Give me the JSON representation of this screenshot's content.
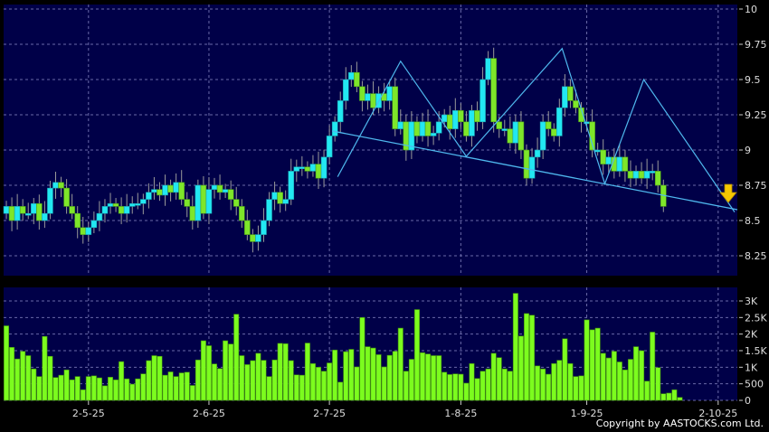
{
  "chart_data": [
    {
      "type": "candlestick",
      "y_axis": {
        "ticks": [
          "10",
          "9.75",
          "9.5",
          "9.25",
          "9",
          "8.75",
          "8.5",
          "8.25"
        ],
        "ylim": [
          8.18,
          10.03
        ],
        "position": "right"
      },
      "x_axis": {
        "ticks": [
          {
            "label": "2-5-25",
            "index": 15
          },
          {
            "label": "2-6-25",
            "index": 37
          },
          {
            "label": "2-7-25",
            "index": 59
          },
          {
            "label": "1-8-25",
            "index": 83
          },
          {
            "label": "1-9-25",
            "index": 106
          },
          {
            "label": "2-10-25",
            "index": 130
          }
        ]
      },
      "grid": true,
      "colors": {
        "background": "#000048",
        "up": "#22e8f2",
        "down": "#7ee62a",
        "pattern": "#4fb8ee",
        "grid": "#6a6aa8",
        "arrow": "#f5c800"
      },
      "close": [
        8.6,
        8.5,
        8.6,
        8.55,
        8.55,
        8.62,
        8.5,
        8.55,
        8.73,
        8.77,
        8.73,
        8.6,
        8.55,
        8.45,
        8.4,
        8.45,
        8.5,
        8.55,
        8.6,
        8.62,
        8.6,
        8.55,
        8.6,
        8.62,
        8.62,
        8.65,
        8.7,
        8.72,
        8.68,
        8.75,
        8.7,
        8.77,
        8.65,
        8.6,
        8.5,
        8.75,
        8.55,
        8.72,
        8.75,
        8.7,
        8.72,
        8.65,
        8.6,
        8.5,
        8.4,
        8.35,
        8.4,
        8.5,
        8.65,
        8.7,
        8.62,
        8.65,
        8.85,
        8.88,
        8.88,
        8.85,
        8.9,
        8.8,
        8.95,
        9.1,
        9.2,
        9.35,
        9.5,
        9.55,
        9.45,
        9.35,
        9.4,
        9.3,
        9.4,
        9.35,
        9.45,
        9.15,
        9.2,
        9.0,
        9.2,
        9.1,
        9.2,
        9.1,
        9.12,
        9.2,
        9.25,
        9.15,
        9.28,
        9.2,
        9.1,
        9.28,
        9.2,
        9.5,
        9.65,
        9.2,
        9.15,
        9.15,
        9.05,
        9.2,
        9.0,
        8.8,
        8.95,
        9.0,
        9.2,
        9.15,
        9.1,
        9.3,
        9.45,
        9.35,
        9.3,
        9.2,
        9.2,
        9.0,
        9.0,
        8.9,
        8.95,
        8.85,
        8.95,
        8.85,
        8.8,
        8.85,
        8.8,
        8.85,
        8.85,
        8.75,
        8.6
      ],
      "pattern_lines": {
        "trendline": [
          [
            59.5,
            9.135
          ],
          [
            133.5,
            8.577
          ]
        ],
        "zigzag": [
          [
            60.5,
            8.81
          ],
          [
            72,
            9.63
          ],
          [
            84,
            8.955
          ],
          [
            101.5,
            9.72
          ],
          [
            109.3,
            8.76
          ],
          [
            116.4,
            9.5
          ],
          [
            133,
            8.56
          ]
        ]
      },
      "signal": "down-arrow"
    },
    {
      "type": "bar",
      "y_axis": {
        "ticks": [
          "3K",
          "2.5K",
          "2K",
          "1.5K",
          "1K",
          "500",
          "0"
        ],
        "ylim": [
          0,
          3400
        ],
        "position": "right"
      },
      "values": [
        2250,
        1600,
        1250,
        1480,
        1350,
        950,
        720,
        1930,
        1330,
        690,
        760,
        920,
        620,
        720,
        320,
        720,
        740,
        680,
        440,
        700,
        620,
        1170,
        650,
        490,
        650,
        800,
        1200,
        1350,
        1330,
        760,
        860,
        720,
        830,
        850,
        450,
        1220,
        1800,
        1650,
        1100,
        960,
        1800,
        1700,
        2600,
        1350,
        1080,
        1200,
        1420,
        1210,
        720,
        1220,
        1720,
        1710,
        1200,
        770,
        760,
        1730,
        1110,
        1000,
        880,
        1130,
        1520,
        550,
        1470,
        1540,
        1010,
        2500,
        1620,
        1580,
        1380,
        1010,
        1360,
        1480,
        2180,
        880,
        1240,
        2740,
        1440,
        1400,
        1350,
        1350,
        850,
        780,
        800,
        790,
        520,
        1110,
        660,
        880,
        950,
        1420,
        1290,
        950,
        880,
        3230,
        1940,
        2620,
        2570,
        1040,
        950,
        790,
        1110,
        1210,
        1860,
        1110,
        720,
        740,
        2430,
        2130,
        2180,
        1420,
        1280,
        1480,
        1160,
        920,
        1240,
        1620,
        1500,
        580,
        2060,
        990,
        200,
        220,
        320,
        90
      ],
      "colors": {
        "bar": "#7cfc1e",
        "border": "#3f8a10"
      }
    }
  ],
  "copyright": "Copyright by AASTOCKS.com Ltd."
}
